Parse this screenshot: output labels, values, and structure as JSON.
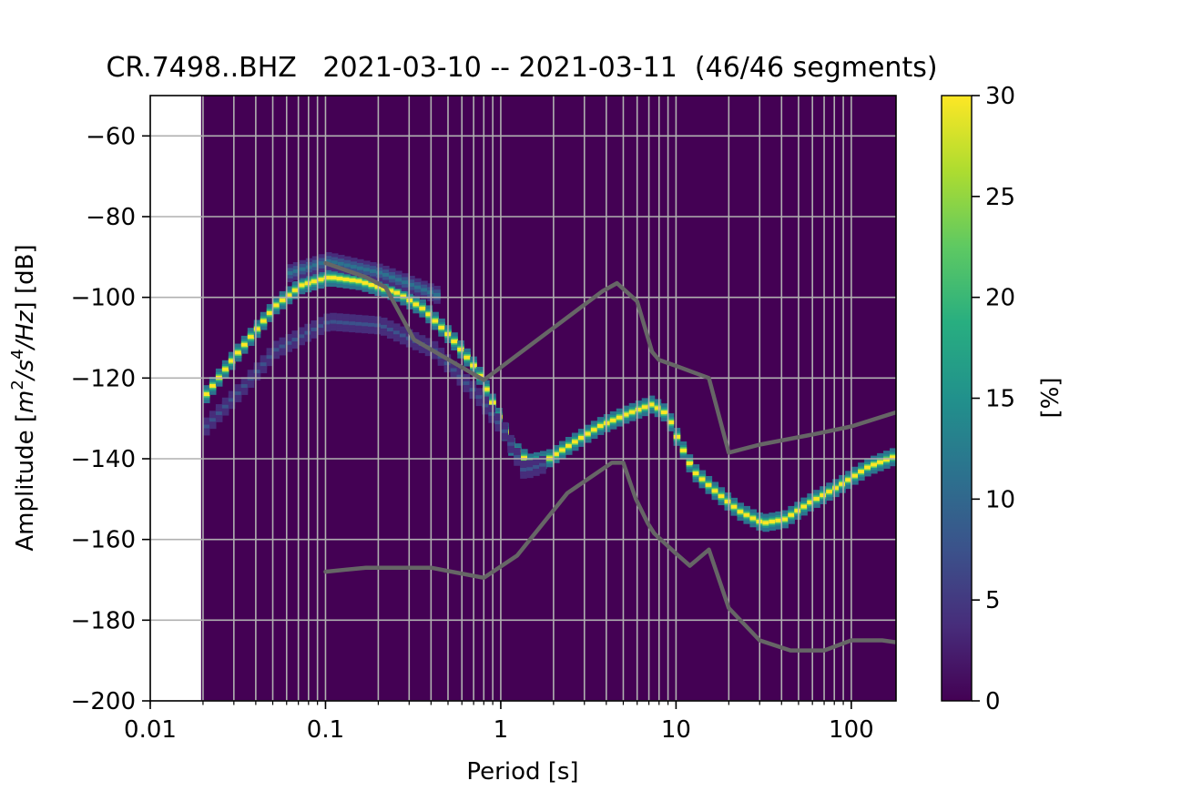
{
  "chart_data": {
    "type": "heatmap",
    "title": "CR.7498..BHZ   2021-03-10 -- 2021-03-11  (46/46 segments)",
    "xlabel": "Period [s]",
    "ylabel_parts": [
      "Amplitude [",
      "m",
      "2",
      "/",
      "s",
      "4",
      "/",
      "Hz",
      "] [dB]"
    ],
    "x_scale": "log",
    "xlim": [
      0.01,
      180
    ],
    "ylim": [
      -200,
      -50
    ],
    "x_ticks": [
      {
        "value": 0.01,
        "label": "0.01"
      },
      {
        "value": 0.1,
        "label": "0.1"
      },
      {
        "value": 1,
        "label": "1"
      },
      {
        "value": 10,
        "label": "10"
      },
      {
        "value": 100,
        "label": "100"
      }
    ],
    "y_ticks": [
      {
        "value": -60,
        "label": "−60"
      },
      {
        "value": -80,
        "label": "−80"
      },
      {
        "value": -100,
        "label": "−100"
      },
      {
        "value": -120,
        "label": "−120"
      },
      {
        "value": -140,
        "label": "−140"
      },
      {
        "value": -160,
        "label": "−160"
      },
      {
        "value": -180,
        "label": "−180"
      },
      {
        "value": -200,
        "label": "−200"
      }
    ],
    "grid": true,
    "colormap": "viridis",
    "data_x_range": [
      0.0195,
      180
    ],
    "colorbar": {
      "label": "[%]",
      "range": [
        0,
        30
      ],
      "ticks": [
        {
          "value": 0,
          "label": "0"
        },
        {
          "value": 5,
          "label": "5"
        },
        {
          "value": 10,
          "label": "10"
        },
        {
          "value": 15,
          "label": "15"
        },
        {
          "value": 20,
          "label": "20"
        },
        {
          "value": 25,
          "label": "25"
        },
        {
          "value": 30,
          "label": "30"
        }
      ]
    },
    "density_ridges": [
      {
        "name": "main",
        "points": [
          [
            0.02,
            -124
          ],
          [
            0.03,
            -114
          ],
          [
            0.05,
            -102
          ],
          [
            0.07,
            -97
          ],
          [
            0.1,
            -95
          ],
          [
            0.15,
            -96
          ],
          [
            0.25,
            -99
          ],
          [
            0.35,
            -103
          ],
          [
            0.5,
            -110
          ],
          [
            0.7,
            -118
          ],
          [
            0.9,
            -128
          ],
          [
            1.1,
            -137
          ],
          [
            1.4,
            -141
          ],
          [
            1.8,
            -140
          ],
          [
            2.5,
            -136
          ],
          [
            3.5,
            -132
          ],
          [
            5,
            -129
          ],
          [
            7,
            -126.5
          ],
          [
            8.5,
            -129
          ],
          [
            10,
            -136
          ],
          [
            12,
            -143
          ],
          [
            16,
            -148
          ],
          [
            22,
            -153
          ],
          [
            30,
            -156
          ],
          [
            40,
            -155
          ],
          [
            55,
            -151
          ],
          [
            80,
            -147
          ],
          [
            120,
            -142
          ],
          [
            180,
            -139
          ]
        ],
        "peak_percent": 30
      },
      {
        "name": "lower",
        "points": [
          [
            0.02,
            -132
          ],
          [
            0.03,
            -124
          ],
          [
            0.05,
            -113
          ],
          [
            0.1,
            -106
          ],
          [
            0.2,
            -107
          ],
          [
            0.4,
            -113
          ],
          [
            0.7,
            -124
          ],
          [
            1,
            -133
          ],
          [
            1.3,
            -143
          ],
          [
            1.8,
            -141
          ]
        ],
        "peak_percent": 6
      },
      {
        "name": "upper",
        "points": [
          [
            0.06,
            -94
          ],
          [
            0.1,
            -91
          ],
          [
            0.2,
            -94
          ],
          [
            0.3,
            -97
          ],
          [
            0.45,
            -100
          ]
        ],
        "peak_percent": 12
      }
    ],
    "series": [
      {
        "name": "",
        "color": "#666666",
        "points": [
          [
            0.1,
            -91.5
          ],
          [
            0.17,
            -95
          ],
          [
            0.22,
            -97.5
          ],
          [
            0.32,
            -110.5
          ],
          [
            0.8,
            -120.5
          ],
          [
            3.8,
            -98.5
          ],
          [
            4.6,
            -96.5
          ],
          [
            6,
            -101
          ],
          [
            7.3,
            -113.5
          ],
          [
            8,
            -115.5
          ],
          [
            10,
            -117
          ],
          [
            15.4,
            -120
          ],
          [
            20,
            -138.5
          ],
          [
            30,
            -136.5
          ],
          [
            60,
            -134
          ],
          [
            100,
            -132
          ],
          [
            180,
            -128.5
          ]
        ]
      },
      {
        "name": "",
        "color": "#666666",
        "points": [
          [
            0.1,
            -168
          ],
          [
            0.17,
            -167
          ],
          [
            0.4,
            -167
          ],
          [
            0.8,
            -169.5
          ],
          [
            1.24,
            -164
          ],
          [
            2.4,
            -148.5
          ],
          [
            4.3,
            -141
          ],
          [
            5,
            -141
          ],
          [
            5.9,
            -150
          ],
          [
            6.9,
            -156
          ],
          [
            7.5,
            -158.5
          ],
          [
            10,
            -163.5
          ],
          [
            12,
            -166.5
          ],
          [
            15.4,
            -162.5
          ],
          [
            20,
            -177
          ],
          [
            30,
            -185
          ],
          [
            45,
            -187.5
          ],
          [
            70,
            -187.5
          ],
          [
            100,
            -185
          ],
          [
            150,
            -185
          ],
          [
            180,
            -185.5
          ]
        ]
      }
    ]
  }
}
